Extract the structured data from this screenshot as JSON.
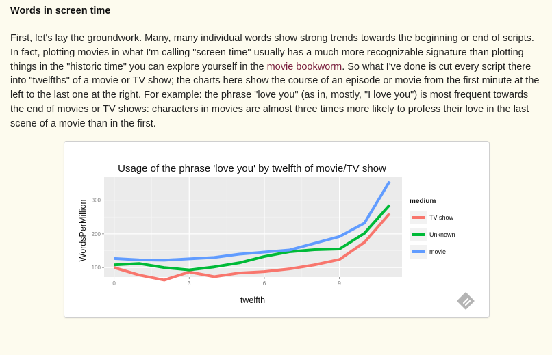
{
  "section": {
    "heading": "Words in screen time",
    "paragraph": {
      "before_link": "First, let's lay the groundwork. Many, many individual words show strong trends towards the beginning or end of scripts. In fact, plotting movies in what I'm calling \"screen time\" usually has a much more recognizable signature than plotting things in the \"historic time\" you can explore yourself in the ",
      "link": "movie bookworm",
      "after_link": ". So what I've done is cut every script there into \"twelfths\" of a movie or TV show; the charts here show the course of an episode or movie from the first minute at the left to the last one at the right. For example: the phrase \"love you\" (as in, mostly, \"I love you\") is most frequent towards the end of movies or TV shows: characters in movies are almost three times more likely to profess their love in the last scene of a movie than in the first."
    }
  },
  "chart_data": {
    "type": "line",
    "title": "Usage of the phrase 'love you' by twelfth of movie/TV show",
    "xlabel": "twelfth",
    "ylabel": "WordsPerMillion",
    "xlim": [
      -0.4,
      11.5
    ],
    "ylim": [
      72,
      368
    ],
    "x_ticks": [
      0,
      3,
      6,
      9
    ],
    "y_ticks": [
      100,
      200,
      300
    ],
    "grid": true,
    "legend_title": "medium",
    "legend_position": "right",
    "x": [
      0,
      1,
      2,
      3,
      4,
      5,
      6,
      7,
      8,
      9,
      10,
      11
    ],
    "series": [
      {
        "name": "TV show",
        "color": "#f8766d",
        "values": [
          100,
          78,
          63,
          87,
          73,
          84,
          88,
          96,
          108,
          124,
          175,
          260
        ]
      },
      {
        "name": "Unknown",
        "color": "#00ba38",
        "values": [
          108,
          112,
          100,
          93,
          102,
          114,
          133,
          147,
          153,
          155,
          202,
          285
        ]
      },
      {
        "name": "movie",
        "color": "#619cff",
        "values": [
          127,
          123,
          122,
          126,
          130,
          140,
          146,
          152,
          172,
          192,
          232,
          355
        ]
      }
    ]
  },
  "icons": {
    "embed": "feedly-icon"
  }
}
